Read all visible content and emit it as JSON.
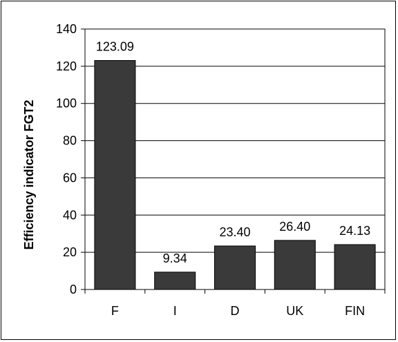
{
  "chart_data": {
    "type": "bar",
    "title": "",
    "xlabel": "",
    "ylabel": "Efficiency indicator FGT2",
    "categories": [
      "F",
      "I",
      "D",
      "UK",
      "FIN"
    ],
    "values": [
      123.09,
      9.34,
      23.4,
      26.4,
      24.13
    ],
    "value_labels": [
      "123.09",
      "9.34",
      "23.40",
      "26.40",
      "24.13"
    ],
    "ylim": [
      0,
      140
    ],
    "yticks": [
      0,
      20,
      40,
      60,
      80,
      100,
      120,
      140
    ],
    "grid": true,
    "legend": "none",
    "bar_color": "#3a3a3a"
  }
}
